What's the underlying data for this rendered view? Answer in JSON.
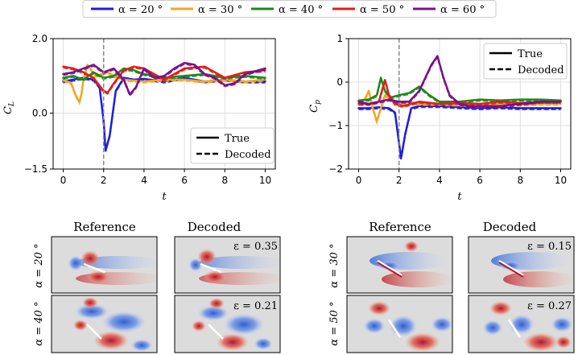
{
  "legend_top": {
    "entries": [
      {
        "label": "α = 20 °",
        "color": "#1f1fd6"
      },
      {
        "label": "α = 30 °",
        "color": "#f5a623"
      },
      {
        "label": "α = 40 °",
        "color": "#1a8a1a"
      },
      {
        "label": "α = 50 °",
        "color": "#e01e1e"
      },
      {
        "label": "α = 60 °",
        "color": "#7b128a"
      }
    ]
  },
  "panel_legend": {
    "true_label": "True",
    "decoded_label": "Decoded"
  },
  "chart_data": [
    {
      "type": "line",
      "ylabel": "C_L",
      "xlabel": "t",
      "xlim": [
        -0.5,
        10.5
      ],
      "ylim": [
        -1.5,
        2.0
      ],
      "xticks": [
        "0",
        "2",
        "4",
        "6",
        "8",
        "10"
      ],
      "xtick_values": [
        0,
        2,
        4,
        6,
        8,
        10
      ],
      "yticks": [
        "−1.5",
        "0.0",
        "2.0"
      ],
      "ytick_values": [
        -1.5,
        0.0,
        2.0
      ],
      "marker_line_x": 2,
      "legend_position": "lower-right",
      "series": [
        {
          "name": "α = 20 °",
          "color": "#1f1fd6",
          "x": [
            0,
            0.5,
            1,
            1.5,
            1.8,
            2.0,
            2.1,
            2.3,
            2.6,
            3,
            3.5,
            4,
            5,
            6,
            7,
            8,
            9,
            10
          ],
          "y": [
            0.85,
            0.9,
            0.95,
            0.9,
            0.7,
            -0.2,
            -1.0,
            -0.6,
            0.6,
            0.95,
            0.9,
            0.92,
            0.85,
            0.95,
            0.85,
            0.9,
            0.85,
            0.85
          ]
        },
        {
          "name": "α = 30 °",
          "color": "#f5a623",
          "x": [
            0,
            0.4,
            0.6,
            0.8,
            0.9,
            1.0,
            1.2,
            1.4,
            1.6,
            1.9,
            2.2,
            2.5,
            3,
            4,
            5,
            6,
            7,
            8,
            9,
            10
          ],
          "y": [
            0.9,
            0.8,
            0.5,
            0.3,
            0.5,
            0.9,
            1.3,
            1.15,
            1.0,
            1.05,
            1.1,
            1.0,
            0.9,
            0.85,
            0.9,
            0.9,
            0.85,
            0.9,
            0.85,
            0.9
          ]
        },
        {
          "name": "α = 40 °",
          "color": "#1a8a1a",
          "x": [
            0,
            0.5,
            1,
            1.5,
            2,
            2.5,
            3,
            3.5,
            4,
            5,
            6,
            7,
            8,
            9,
            10
          ],
          "y": [
            0.95,
            1.0,
            0.9,
            1.1,
            0.95,
            1.0,
            1.2,
            1.15,
            1.05,
            0.95,
            1.0,
            1.05,
            0.95,
            1.0,
            0.95
          ]
        },
        {
          "name": "α = 50 °",
          "color": "#e01e1e",
          "x": [
            0,
            0.5,
            1,
            1.5,
            2,
            2.2,
            2.5,
            3,
            3.5,
            4,
            4.5,
            5,
            6,
            7,
            8,
            9,
            10
          ],
          "y": [
            1.25,
            1.2,
            1.1,
            0.95,
            0.6,
            0.55,
            0.8,
            1.15,
            1.25,
            1.2,
            1.05,
            0.9,
            1.2,
            1.25,
            0.95,
            1.1,
            1.15
          ]
        },
        {
          "name": "α = 60 °",
          "color": "#7b128a",
          "x": [
            0,
            0.5,
            1,
            1.5,
            2,
            2.5,
            3,
            3.3,
            3.6,
            4,
            4.5,
            5,
            5.5,
            6,
            6.5,
            7,
            7.5,
            8,
            8.5,
            9,
            10
          ],
          "y": [
            1.05,
            1.1,
            1.2,
            1.3,
            1.1,
            1.2,
            0.9,
            0.5,
            0.7,
            1.2,
            0.95,
            1.0,
            1.2,
            1.35,
            1.3,
            1.05,
            0.95,
            0.75,
            0.8,
            1.05,
            1.2
          ]
        }
      ]
    },
    {
      "type": "line",
      "ylabel": "C_p",
      "xlabel": "t",
      "xlim": [
        -0.5,
        10.5
      ],
      "ylim": [
        -2.0,
        1.0
      ],
      "xticks": [
        "0",
        "2",
        "4",
        "6",
        "8",
        "10"
      ],
      "xtick_values": [
        0,
        2,
        4,
        6,
        8,
        10
      ],
      "yticks": [
        "−2",
        "−1",
        "0",
        "1"
      ],
      "ytick_values": [
        -2,
        -1,
        0,
        1
      ],
      "marker_line_x": 2,
      "legend_position": "top-right",
      "series": [
        {
          "name": "α = 20 °",
          "color": "#1f1fd6",
          "x": [
            0,
            0.5,
            1,
            1.5,
            1.8,
            2.0,
            2.1,
            2.3,
            2.6,
            3,
            4,
            5,
            6,
            7,
            8,
            9,
            10
          ],
          "y": [
            -0.6,
            -0.6,
            -0.58,
            -0.6,
            -0.7,
            -1.4,
            -1.75,
            -1.2,
            -0.6,
            -0.55,
            -0.55,
            -0.58,
            -0.6,
            -0.58,
            -0.6,
            -0.6,
            -0.6
          ]
        },
        {
          "name": "α = 30 °",
          "color": "#f5a623",
          "x": [
            0,
            0.3,
            0.5,
            0.7,
            0.9,
            1.1,
            1.3,
            1.6,
            2,
            2.5,
            3,
            4,
            5,
            6,
            7,
            8,
            9,
            10
          ],
          "y": [
            -0.45,
            -0.4,
            -0.2,
            -0.6,
            -0.9,
            -0.6,
            -0.3,
            -0.4,
            -0.5,
            -0.45,
            -0.5,
            -0.5,
            -0.52,
            -0.55,
            -0.5,
            -0.52,
            -0.5,
            -0.5
          ]
        },
        {
          "name": "α = 40 °",
          "color": "#1a8a1a",
          "x": [
            0,
            0.5,
            0.9,
            1.1,
            1.3,
            1.6,
            2,
            2.5,
            3,
            3.5,
            4,
            5,
            6,
            7,
            8,
            9,
            10
          ],
          "y": [
            -0.42,
            -0.4,
            -0.3,
            0.1,
            -0.2,
            -0.35,
            -0.3,
            -0.25,
            -0.1,
            -0.3,
            -0.45,
            -0.45,
            -0.4,
            -0.42,
            -0.4,
            -0.4,
            -0.42
          ]
        },
        {
          "name": "α = 50 °",
          "color": "#e01e1e",
          "x": [
            0,
            0.5,
            1,
            1.3,
            1.5,
            1.8,
            2.2,
            2.6,
            3,
            4,
            5,
            6,
            7,
            8,
            9,
            10
          ],
          "y": [
            -0.5,
            -0.5,
            -0.45,
            0.05,
            -0.3,
            -0.5,
            -0.55,
            -0.5,
            -0.45,
            -0.5,
            -0.48,
            -0.5,
            -0.45,
            -0.48,
            -0.45,
            -0.45
          ]
        },
        {
          "name": "α = 60 °",
          "color": "#7b128a",
          "x": [
            0,
            0.5,
            1,
            1.5,
            2,
            2.5,
            3,
            3.3,
            3.6,
            3.9,
            4.2,
            4.5,
            5,
            5.5,
            6,
            7,
            8,
            9,
            10
          ],
          "y": [
            -0.45,
            -0.5,
            -0.45,
            -0.4,
            -0.45,
            -0.45,
            -0.2,
            0.1,
            0.4,
            0.6,
            0.1,
            -0.3,
            -0.5,
            -0.55,
            -0.55,
            -0.55,
            -0.5,
            -0.45,
            -0.45
          ]
        }
      ]
    }
  ],
  "flow_fields": {
    "left_group": {
      "reference_title": "Reference",
      "decoded_title": "Decoded",
      "rows": [
        {
          "row_label": "α = 20 °",
          "error_text": "ε = 0.35"
        },
        {
          "row_label": "α = 40 °",
          "error_text": "ε = 0.21"
        }
      ]
    },
    "right_group": {
      "reference_title": "Reference",
      "decoded_title": "Decoded",
      "rows": [
        {
          "row_label": "α = 30 °",
          "error_text": "ε = 0.15"
        },
        {
          "row_label": "α = 50 °",
          "error_text": "ε = 0.27"
        }
      ]
    }
  }
}
